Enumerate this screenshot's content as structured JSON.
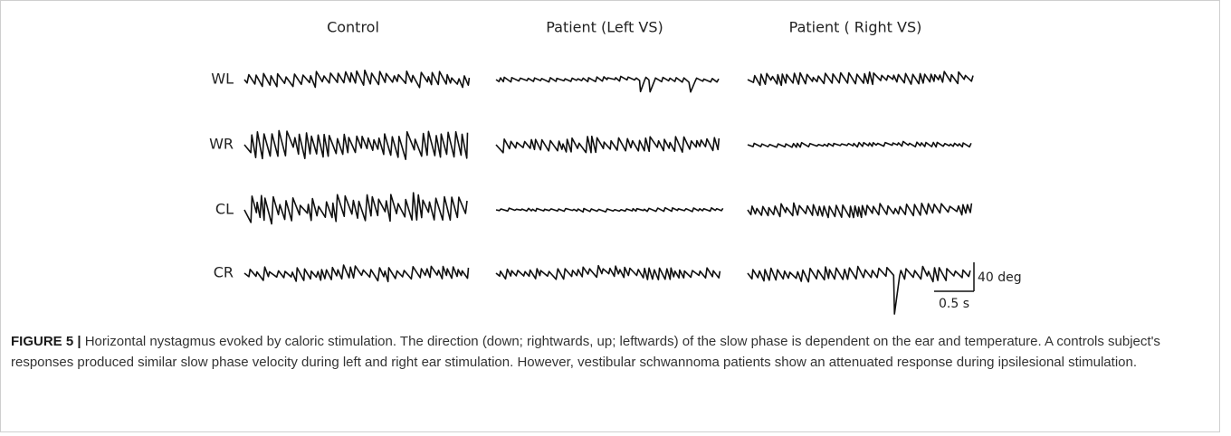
{
  "figure": {
    "columns": [
      "Control",
      "Patient (Left VS)",
      "Patient ( Right VS)"
    ],
    "rows": [
      "WL",
      "WR",
      "CL",
      "CR"
    ],
    "scale_bar": {
      "vertical": "40 deg",
      "horizontal": "0.5 s"
    }
  },
  "caption": {
    "label": "FIGURE 5 |",
    "text": "Horizontal nystagmus evoked by caloric stimulation. The direction (down; rightwards, up; leftwards) of the slow phase is dependent on the ear and temperature. A controls subject's responses produced similar slow phase velocity during left and right ear stimulation. However, vestibular schwannoma patients show an attenuated response during ipsilesional stimulation."
  }
}
